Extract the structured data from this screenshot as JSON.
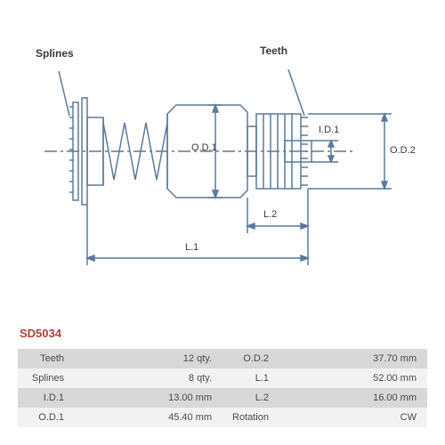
{
  "product_code": "SD5034",
  "labels": {
    "splines": "Splines",
    "teeth": "Teeth",
    "od1": "O.D.1",
    "od2": "O.D.2",
    "id1": "I.D.1",
    "l1": "L.1",
    "l2": "L.2"
  },
  "spec_rows": [
    {
      "k1": "Teeth",
      "v1": "12 qty.",
      "k2": "O.D.2",
      "v2": "37.70 mm"
    },
    {
      "k1": "Splines",
      "v1": "8 qty.",
      "k2": "L.1",
      "v2": "52.00 mm"
    },
    {
      "k1": "I.D.1",
      "v1": "13.00 mm",
      "k2": "L.2",
      "v2": "16.00 mm"
    },
    {
      "k1": "O.D.1",
      "v1": "45.40 mm",
      "k2": "Rotation",
      "v2": "CW"
    }
  ],
  "style": {
    "line_color": "#5a7a9a",
    "line_width": 1.5,
    "label_color": "#3a3a3a",
    "code_color": "#b0403a",
    "row_odd_bg": "#d8d8d8",
    "row_even_bg": "#f2f2f2",
    "label_fontsize": 12,
    "dim_fontsize": 11,
    "table_fontsize": 11
  }
}
